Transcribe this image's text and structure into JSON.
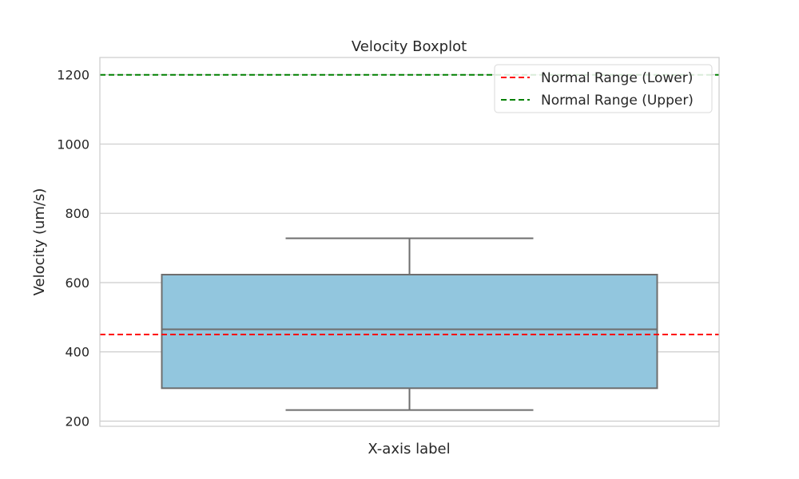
{
  "chart_data": {
    "type": "box",
    "title": "Velocity Boxplot",
    "xlabel": "X-axis label",
    "ylabel": "Velocity (um/s)",
    "ylim": [
      185,
      1250
    ],
    "yticks": [
      200,
      400,
      600,
      800,
      1000,
      1200
    ],
    "grid": true,
    "legend_position": "top-right",
    "box": {
      "whisker_low": 232,
      "q1": 295,
      "median": 465,
      "q3": 623,
      "whisker_high": 728,
      "fill_color": "#92c6de",
      "edge_color": "#6e6e6e"
    },
    "reference_lines": [
      {
        "name": "Normal Range (Lower)",
        "value": 450,
        "color": "#ff0000",
        "style": "dashed"
      },
      {
        "name": "Normal Range (Upper)",
        "value": 1200,
        "color": "#008000",
        "style": "dashed"
      }
    ]
  }
}
